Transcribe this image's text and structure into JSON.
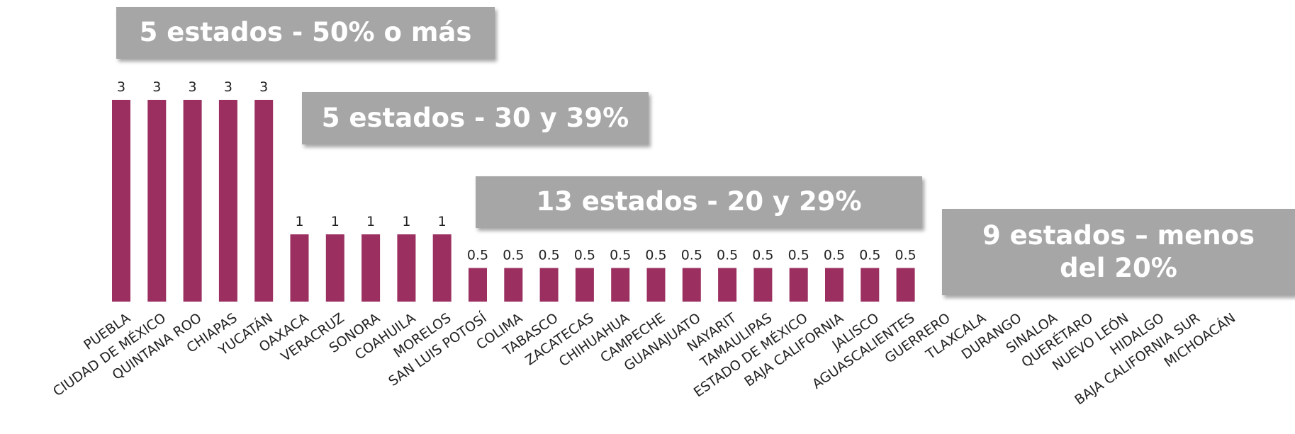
{
  "chart_data": {
    "type": "bar",
    "color": "#9b3060",
    "categories": [
      "PUEBLA",
      "CIUDAD DE MÉXICO",
      "QUINTANA ROO",
      "CHIAPAS",
      "YUCATÁN",
      "OAXACA",
      "VERACRUZ",
      "SONORA",
      "COAHUILA",
      "MORELOS",
      "SAN LUIS POTOSÍ",
      "COLIMA",
      "TABASCO",
      "ZACATECAS",
      "CHIHUAHUA",
      "CAMPECHE",
      "GUANAJUATO",
      "NAYARIT",
      "TAMAULIPAS",
      "ESTADO DE MÉXICO",
      "BAJA CALIFORNIA",
      "JALISCO",
      "AGUASCALIENTES",
      "GUERRERO",
      "TLAXCALA",
      "DURANGO",
      "SINALOA",
      "QUERÉTARO",
      "NUEVO LEÓN",
      "HIDALGO",
      "BAJA CALIFORNIA SUR",
      "MICHOACÁN"
    ],
    "values": [
      3,
      3,
      3,
      3,
      3,
      1,
      1,
      1,
      1,
      1,
      0.5,
      0.5,
      0.5,
      0.5,
      0.5,
      0.5,
      0.5,
      0.5,
      0.5,
      0.5,
      0.5,
      0.5,
      0.5,
      null,
      null,
      null,
      null,
      null,
      null,
      null,
      null,
      null
    ],
    "annotations": [
      "5 estados - 50% o más",
      "5 estados - 30 y 39%",
      "13 estados - 20 y 29%",
      "9 estados – menos del 20%"
    ]
  }
}
